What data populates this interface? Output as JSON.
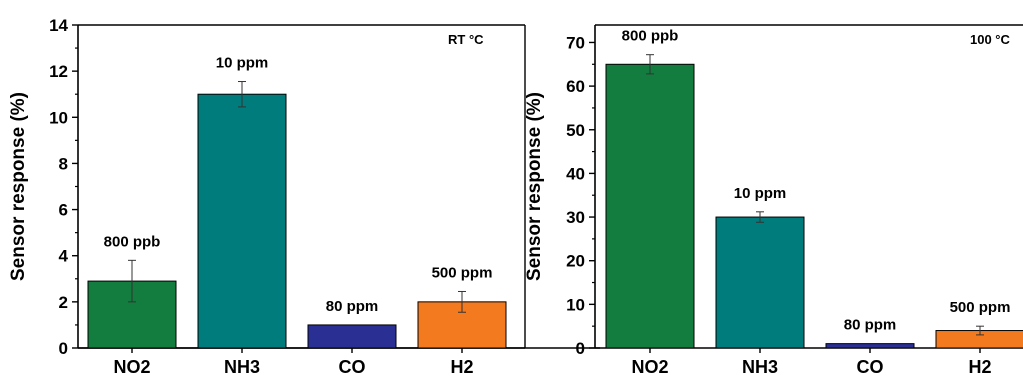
{
  "chart_data": [
    {
      "type": "bar",
      "annotation": "RT °C",
      "ylabel": "Sensor response (%)",
      "categories": [
        "NO2",
        "NH3",
        "CO",
        "H2"
      ],
      "values": [
        2.9,
        11.0,
        1.0,
        2.0
      ],
      "errors": [
        0.9,
        0.55,
        0.0,
        0.45
      ],
      "data_labels": [
        "800 ppb",
        "10 ppm",
        "80 ppm",
        "500 ppm"
      ],
      "colors": [
        "#127d3e",
        "#007c7c",
        "#2a2f94",
        "#f47a1f"
      ],
      "ylim": [
        0,
        14
      ],
      "yticks": [
        0,
        2,
        4,
        6,
        8,
        10,
        12,
        14
      ],
      "ytick_labels": [
        "0",
        "2",
        "4",
        "6",
        "8",
        "10",
        "12",
        "14"
      ],
      "grid": false
    },
    {
      "type": "bar",
      "annotation": "100 °C",
      "ylabel": "Sensor response (%)",
      "categories": [
        "NO2",
        "NH3",
        "CO",
        "H2"
      ],
      "values": [
        65,
        30,
        1,
        4
      ],
      "errors": [
        2.2,
        1.2,
        0.0,
        1.0
      ],
      "data_labels": [
        "800 ppb",
        "10 ppm",
        "80 ppm",
        "500 ppm"
      ],
      "colors": [
        "#127d3e",
        "#007c7c",
        "#2a2f94",
        "#f47a1f"
      ],
      "ylim": [
        0,
        74
      ],
      "yticks": [
        0,
        10,
        20,
        30,
        40,
        50,
        60,
        70
      ],
      "ytick_labels": [
        "0",
        "10",
        "20",
        "30",
        "40",
        "50",
        "60",
        "70"
      ],
      "grid": false
    }
  ]
}
